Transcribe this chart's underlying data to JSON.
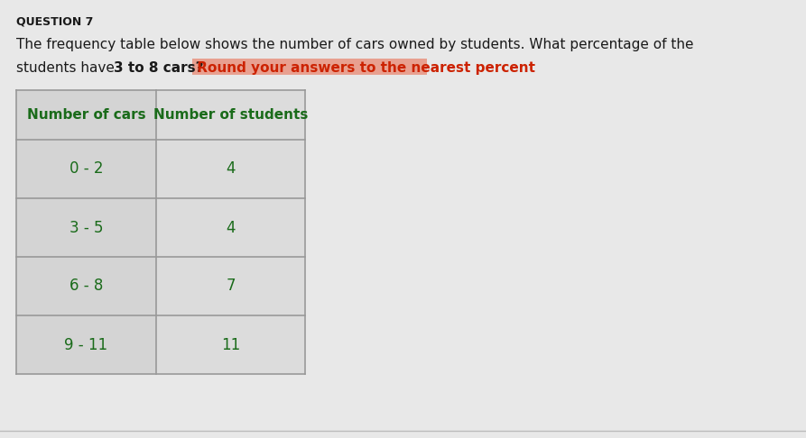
{
  "question_label": "QUESTION 7",
  "line1": "The frequency table below shows the number of cars owned by students. What percentage of the",
  "line2_part1": "students have ",
  "line2_part2": "3 to 8 cars?",
  "line2_part3": " Round your answers to the nearest percent",
  "col1_header": "Number of cars",
  "col2_header": "Number of students",
  "rows": [
    [
      "0 - 2",
      "4"
    ],
    [
      "3 - 5",
      "4"
    ],
    [
      "6 - 8",
      "7"
    ],
    [
      "9 - 11",
      "11"
    ]
  ],
  "bg_color": "#e8e8e8",
  "table_col1_bg": "#d8d8d8",
  "table_col2_bg": "#e0e0e0",
  "table_border_color": "#999999",
  "header_text_color": "#1a6b1a",
  "data_text_color": "#1a6b1a",
  "highlight_bg_color": "#e8a090",
  "highlight_text_color": "#cc2200",
  "question_label_color": "#1a1a1a",
  "normal_text_color": "#1a1a1a",
  "fig_bg_color": "#e8e8e8"
}
